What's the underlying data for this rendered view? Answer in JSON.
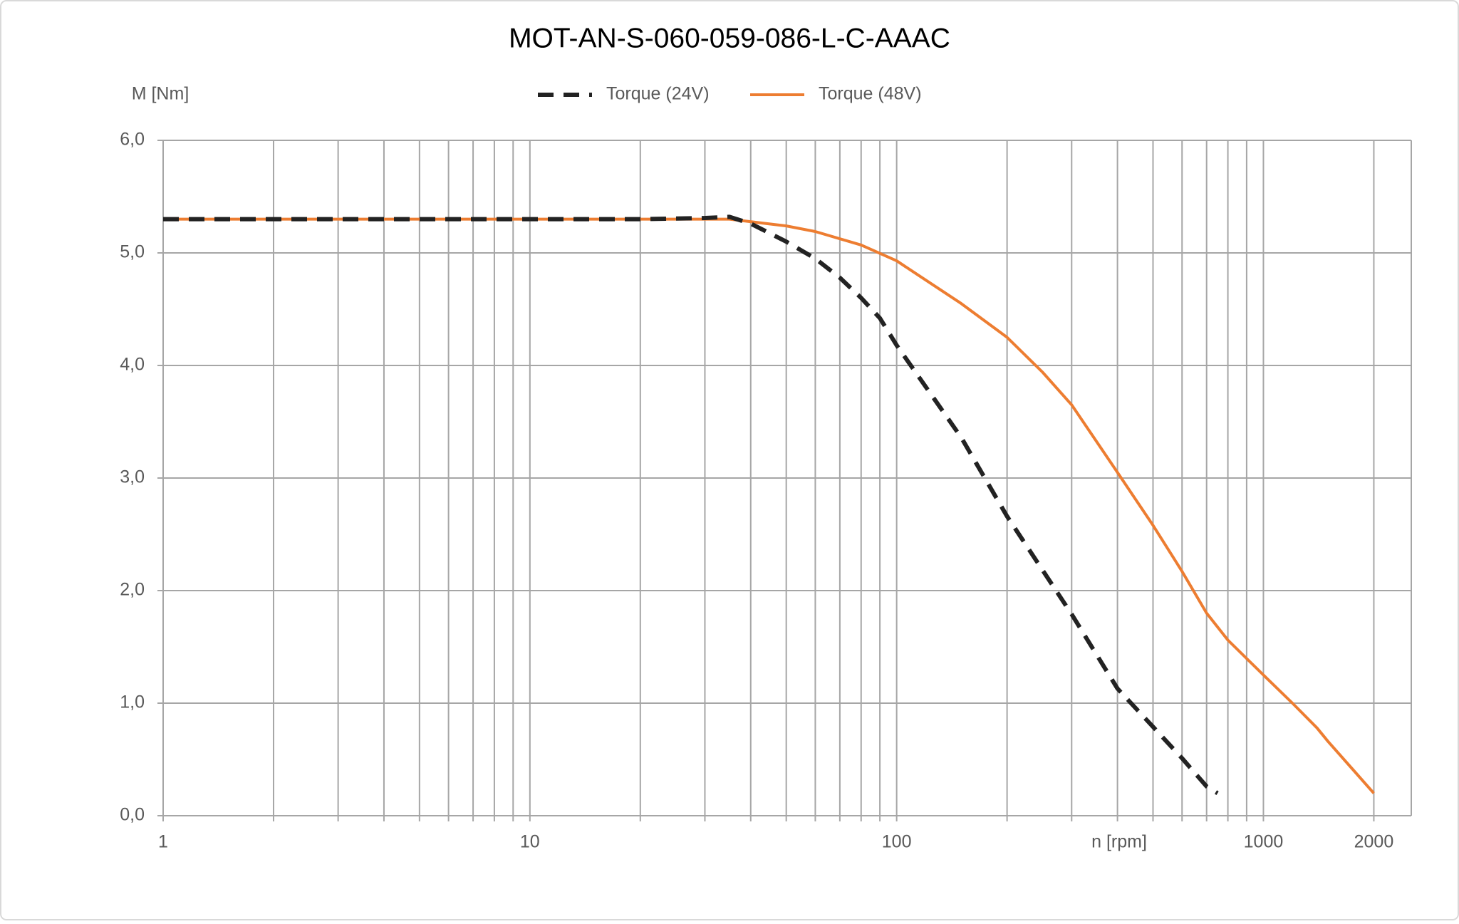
{
  "chart_data": {
    "type": "line",
    "title": "MOT-AN-S-060-059-086-L-C-AAAC",
    "y_label": "M [Nm]",
    "x_label": "n [rpm]",
    "x_log": true,
    "grid": true,
    "xlim": [
      1,
      2530
    ],
    "ylim": [
      0,
      6
    ],
    "xticks": [
      1,
      10,
      100,
      1000,
      2000
    ],
    "xgrid": [
      1,
      2,
      3,
      4,
      5,
      6,
      7,
      8,
      9,
      10,
      20,
      30,
      40,
      50,
      60,
      70,
      80,
      90,
      100,
      200,
      300,
      400,
      500,
      600,
      700,
      800,
      900,
      1000,
      2000
    ],
    "yticks": [
      {
        "value": 0,
        "label": "0,0"
      },
      {
        "value": 1,
        "label": "1,0"
      },
      {
        "value": 2,
        "label": "2,0"
      },
      {
        "value": 3,
        "label": "3,0"
      },
      {
        "value": 4,
        "label": "4,0"
      },
      {
        "value": 5,
        "label": "5,0"
      },
      {
        "value": 6,
        "label": "6,0"
      }
    ],
    "series": [
      {
        "name": "Torque (24V)",
        "color": "#222222",
        "dashed": true,
        "x": [
          1,
          2,
          5,
          10,
          20,
          30,
          35,
          40,
          50,
          60,
          70,
          80,
          90,
          100,
          150,
          200,
          300,
          400,
          500,
          600,
          700,
          750
        ],
        "values": [
          5.3,
          5.3,
          5.3,
          5.3,
          5.3,
          5.31,
          5.32,
          5.26,
          5.1,
          4.95,
          4.78,
          4.6,
          4.42,
          4.18,
          3.36,
          2.66,
          1.79,
          1.13,
          0.79,
          0.51,
          0.26,
          0.2
        ]
      },
      {
        "name": "Torque (48V)",
        "color": "#ed7d31",
        "dashed": false,
        "x": [
          1,
          2,
          5,
          10,
          20,
          35,
          50,
          60,
          80,
          100,
          150,
          200,
          250,
          300,
          400,
          500,
          600,
          700,
          800,
          1000,
          1200,
          1400,
          1500,
          2000
        ],
        "values": [
          5.3,
          5.3,
          5.3,
          5.3,
          5.3,
          5.3,
          5.24,
          5.19,
          5.07,
          4.93,
          4.55,
          4.25,
          3.94,
          3.65,
          3.05,
          2.58,
          2.17,
          1.8,
          1.56,
          1.25,
          1.0,
          0.78,
          0.66,
          0.2
        ]
      }
    ]
  }
}
